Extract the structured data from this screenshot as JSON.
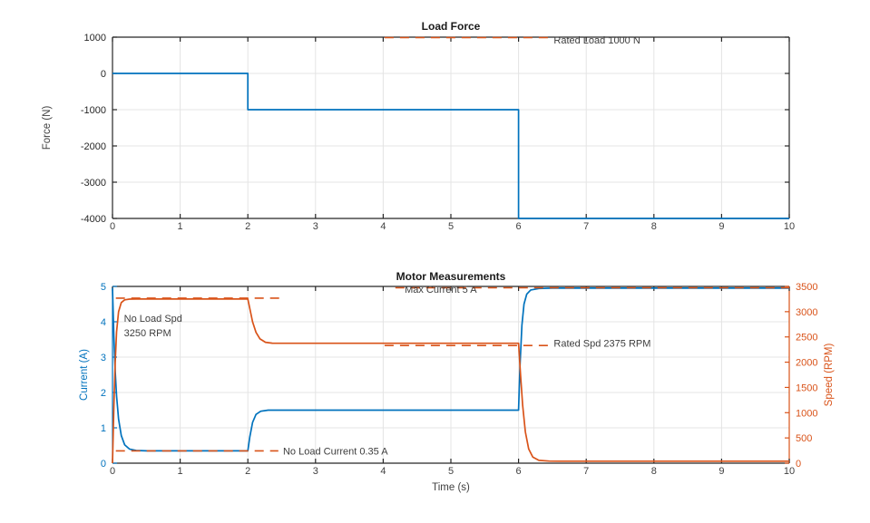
{
  "colors": {
    "blue": "#0072BD",
    "orange": "#D95319",
    "grid": "#e4e4e4",
    "spine": "#262626",
    "tick_text": "#404040",
    "annotation_text": "#3d3d3d",
    "title_text": "#1a1a1a",
    "background": "#ffffff"
  },
  "chart_data": [
    {
      "type": "line",
      "title": "Load Force",
      "xlabel": "",
      "ylabel": "Force (N)",
      "xlim": [
        0,
        10
      ],
      "ylim": [
        -4000,
        1000
      ],
      "xticks": [
        0,
        1,
        2,
        3,
        4,
        5,
        6,
        7,
        8,
        9,
        10
      ],
      "yticks": [
        1000,
        0,
        -1000,
        -2000,
        -3000,
        -4000
      ],
      "grid": true,
      "legend": "none",
      "series": [
        {
          "name": "load-force",
          "color": "blue",
          "style": "solid",
          "points": [
            [
              0,
              0
            ],
            [
              2,
              0
            ],
            [
              2,
              -1000
            ],
            [
              6,
              -1000
            ],
            [
              6,
              -4000
            ],
            [
              10,
              -4000
            ]
          ]
        },
        {
          "name": "rated-load-reference",
          "color": "orange",
          "style": "dashed",
          "dy": 0.5,
          "points": [
            [
              4.02,
              1000
            ],
            [
              6.45,
              1000
            ]
          ]
        }
      ],
      "annotations": [
        {
          "name": "rated-load-label",
          "text": "Rated Load 1000 N",
          "x": 6.52,
          "y": 1000,
          "dy": 3,
          "align": "left"
        }
      ]
    },
    {
      "type": "line",
      "title": "Motor Measurements",
      "xlabel": "Time (s)",
      "xlim": [
        0,
        10
      ],
      "xticks": [
        0,
        1,
        2,
        3,
        4,
        5,
        6,
        7,
        8,
        9,
        10
      ],
      "grid": true,
      "legend": "none",
      "left_axis": {
        "label": "Current (A)",
        "lim": [
          0,
          5
        ],
        "ticks": [
          0,
          1,
          2,
          3,
          4,
          5
        ],
        "color": "blue"
      },
      "right_axis": {
        "label": "Speed (RPM)",
        "lim": [
          0,
          3500
        ],
        "ticks": [
          0,
          500,
          1000,
          1500,
          2000,
          2500,
          3000,
          3500
        ],
        "color": "orange"
      },
      "series": [
        {
          "name": "motor-current",
          "axis": "left",
          "color": "blue",
          "style": "solid",
          "points": [
            [
              0,
              4.95
            ],
            [
              0.02,
              3.6
            ],
            [
              0.04,
              2.6
            ],
            [
              0.06,
              1.9
            ],
            [
              0.09,
              1.25
            ],
            [
              0.13,
              0.78
            ],
            [
              0.18,
              0.52
            ],
            [
              0.25,
              0.4
            ],
            [
              0.35,
              0.36
            ],
            [
              0.5,
              0.35
            ],
            [
              2,
              0.35
            ],
            [
              2.03,
              0.75
            ],
            [
              2.07,
              1.15
            ],
            [
              2.12,
              1.38
            ],
            [
              2.19,
              1.47
            ],
            [
              2.3,
              1.5
            ],
            [
              6,
              1.5
            ],
            [
              6.02,
              2.7
            ],
            [
              6.05,
              3.9
            ],
            [
              6.08,
              4.5
            ],
            [
              6.12,
              4.78
            ],
            [
              6.18,
              4.9
            ],
            [
              6.3,
              4.94
            ],
            [
              6.5,
              4.95
            ],
            [
              10,
              4.95
            ]
          ]
        },
        {
          "name": "motor-speed",
          "axis": "right",
          "color": "orange",
          "style": "solid",
          "points": [
            [
              0,
              0
            ],
            [
              0.02,
              1100
            ],
            [
              0.04,
              2000
            ],
            [
              0.06,
              2600
            ],
            [
              0.09,
              3000
            ],
            [
              0.13,
              3180
            ],
            [
              0.18,
              3235
            ],
            [
              0.25,
              3248
            ],
            [
              0.35,
              3250
            ],
            [
              2,
              3250
            ],
            [
              2.03,
              3060
            ],
            [
              2.07,
              2800
            ],
            [
              2.12,
              2590
            ],
            [
              2.18,
              2460
            ],
            [
              2.26,
              2395
            ],
            [
              2.36,
              2377
            ],
            [
              2.5,
              2375
            ],
            [
              6,
              2375
            ],
            [
              6.03,
              1750
            ],
            [
              6.06,
              1150
            ],
            [
              6.1,
              620
            ],
            [
              6.15,
              280
            ],
            [
              6.21,
              120
            ],
            [
              6.3,
              55
            ],
            [
              6.45,
              42
            ],
            [
              6.6,
              40
            ],
            [
              10,
              40
            ]
          ]
        },
        {
          "name": "no-load-speed-reference",
          "axis": "right",
          "color": "orange",
          "style": "dashed",
          "dy": -1,
          "points": [
            [
              0.05,
              3250
            ],
            [
              2.5,
              3250
            ]
          ]
        },
        {
          "name": "no-load-current-reference",
          "axis": "left",
          "color": "orange",
          "style": "dashed",
          "dy": 0,
          "points": [
            [
              0.05,
              0.35
            ],
            [
              2.45,
              0.35
            ]
          ]
        },
        {
          "name": "rated-speed-reference",
          "axis": "right",
          "color": "orange",
          "style": "dashed",
          "dy": 2.5,
          "points": [
            [
              4.02,
              2375
            ],
            [
              6.45,
              2375
            ]
          ]
        },
        {
          "name": "max-current-reference",
          "axis": "left",
          "color": "orange",
          "style": "dashed",
          "dy": 1.5,
          "points": [
            [
              4.18,
              5
            ],
            [
              10,
              5
            ]
          ]
        }
      ],
      "annotations": [
        {
          "name": "max-current-label",
          "text": "Max Current 5 A",
          "x": 4.85,
          "y": 5,
          "axis": "left",
          "dy": 3,
          "align": "center"
        },
        {
          "name": "no-load-speed-label",
          "text": "No Load Spd\n3250 RPM",
          "x": 0.17,
          "y": 3250,
          "axis": "right",
          "dy": 21,
          "align": "left"
        },
        {
          "name": "rated-speed-label",
          "text": "Rated Spd 2375 RPM",
          "x": 6.52,
          "y": 2375,
          "axis": "right",
          "dy": 0,
          "align": "left"
        },
        {
          "name": "no-load-current-label",
          "text": "No Load Current 0.35 A",
          "x": 2.52,
          "y": 0.35,
          "axis": "left",
          "dy": 0,
          "align": "left"
        }
      ]
    }
  ]
}
